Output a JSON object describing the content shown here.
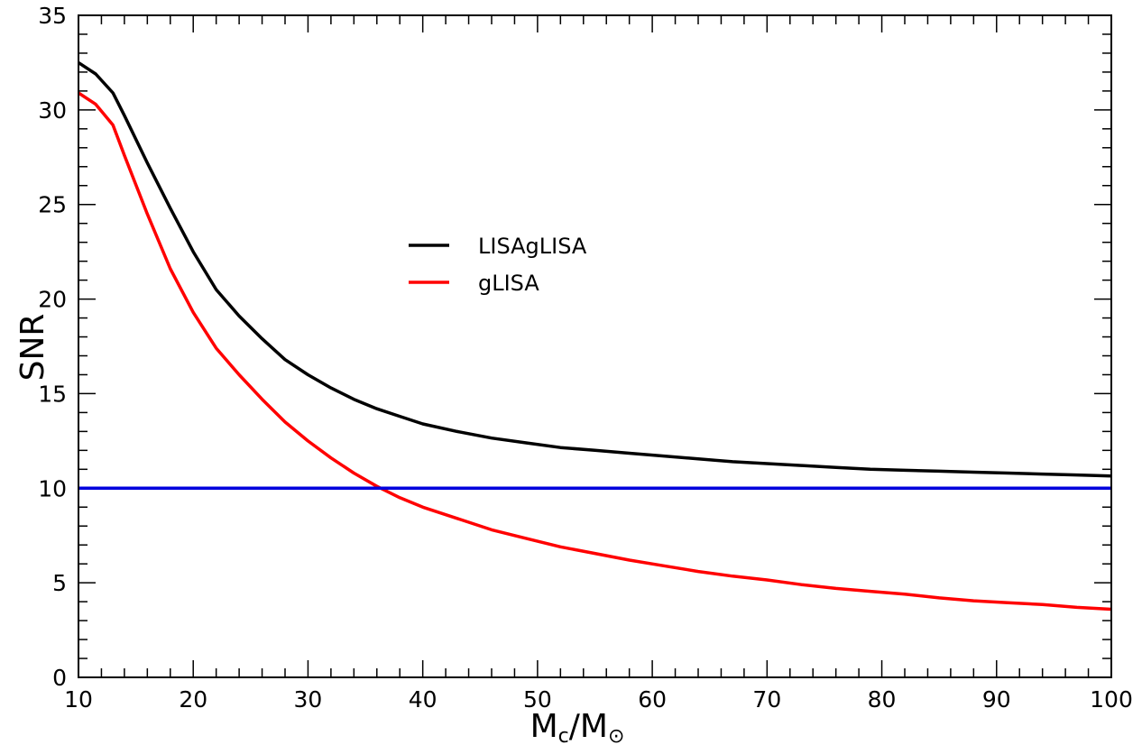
{
  "chart_data": {
    "type": "line",
    "xlabel": {
      "main": "M",
      "sub1": "c",
      "mid": "/M",
      "sub2": "⊙"
    },
    "ylabel": "SNR",
    "xlim": [
      10,
      100
    ],
    "ylim": [
      0,
      35
    ],
    "x_ticks": [
      10,
      20,
      30,
      40,
      50,
      60,
      70,
      80,
      90,
      100
    ],
    "y_ticks": [
      0,
      5,
      10,
      15,
      20,
      25,
      30,
      35
    ],
    "grid": false,
    "legend_position": "center",
    "series": [
      {
        "name": "LISAgLISA",
        "color": "#000000",
        "x": [
          10,
          11.5,
          13,
          14,
          16,
          18,
          20,
          22,
          24,
          26,
          28,
          30,
          32,
          34,
          36,
          38,
          40,
          43,
          46,
          49,
          52,
          55,
          58,
          61,
          64,
          67,
          70,
          73,
          76,
          79,
          82,
          85,
          88,
          91,
          94,
          97,
          100
        ],
        "values": [
          32.5,
          31.9,
          30.9,
          29.7,
          27.2,
          24.8,
          22.5,
          20.5,
          19.1,
          17.9,
          16.8,
          16.0,
          15.3,
          14.7,
          14.2,
          13.8,
          13.4,
          13.0,
          12.65,
          12.4,
          12.15,
          12.0,
          11.85,
          11.7,
          11.55,
          11.4,
          11.3,
          11.2,
          11.1,
          11.0,
          10.95,
          10.9,
          10.85,
          10.8,
          10.75,
          10.7,
          10.65
        ]
      },
      {
        "name": "gLISA",
        "color": "#ff0000",
        "x": [
          10,
          11.5,
          13,
          14,
          16,
          18,
          20,
          22,
          24,
          26,
          28,
          30,
          32,
          34,
          36,
          38,
          40,
          43,
          46,
          49,
          52,
          55,
          58,
          61,
          64,
          67,
          70,
          73,
          76,
          79,
          82,
          85,
          88,
          91,
          94,
          97,
          100
        ],
        "values": [
          30.9,
          30.3,
          29.2,
          27.6,
          24.5,
          21.6,
          19.3,
          17.4,
          16.0,
          14.7,
          13.5,
          12.5,
          11.6,
          10.8,
          10.1,
          9.5,
          9.0,
          8.4,
          7.8,
          7.35,
          6.9,
          6.55,
          6.2,
          5.9,
          5.6,
          5.35,
          5.15,
          4.9,
          4.7,
          4.55,
          4.4,
          4.2,
          4.05,
          3.95,
          3.85,
          3.7,
          3.6
        ]
      },
      {
        "name": "",
        "color": "#0000dd",
        "x": [
          10,
          100
        ],
        "values": [
          10,
          10
        ]
      }
    ]
  }
}
